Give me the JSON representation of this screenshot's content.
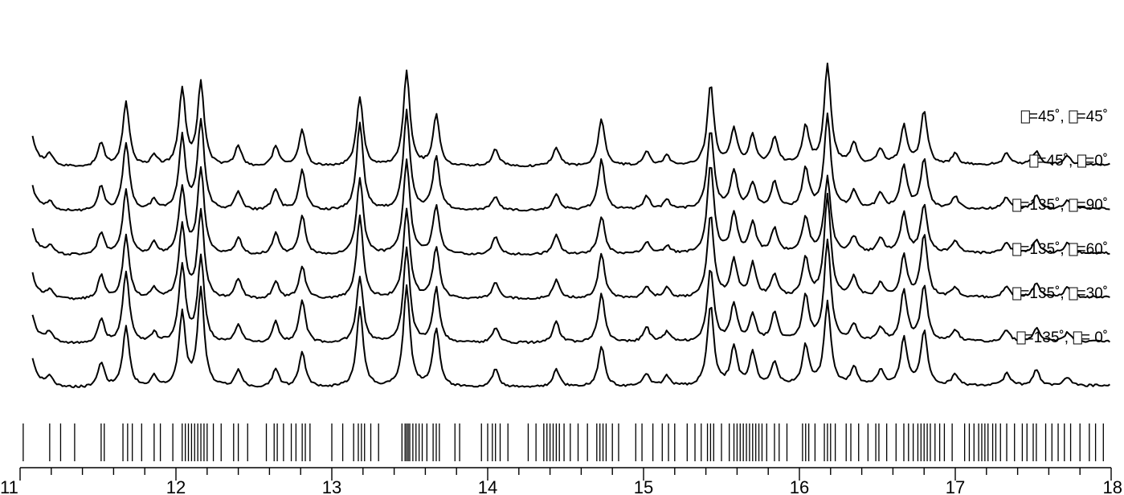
{
  "chart_data": {
    "type": "line",
    "title": "",
    "xlabel": "",
    "ylabel": "",
    "xlim": [
      11,
      18
    ],
    "x_ticks": [
      11,
      12,
      13,
      14,
      15,
      16,
      17,
      18
    ],
    "grid": false,
    "legend": "inline-right",
    "peaks": [
      {
        "x": 11.02,
        "h": 1.0
      },
      {
        "x": 11.19,
        "h": 0.05
      },
      {
        "x": 11.52,
        "h": 0.14
      },
      {
        "x": 11.68,
        "h": 0.38
      },
      {
        "x": 11.86,
        "h": 0.06
      },
      {
        "x": 12.04,
        "h": 0.38
      },
      {
        "x": 12.16,
        "h": 0.5
      },
      {
        "x": 12.4,
        "h": 0.1
      },
      {
        "x": 12.64,
        "h": 0.11
      },
      {
        "x": 12.81,
        "h": 0.2
      },
      {
        "x": 13.18,
        "h": 0.42
      },
      {
        "x": 13.48,
        "h": 0.5
      },
      {
        "x": 13.67,
        "h": 0.3
      },
      {
        "x": 14.05,
        "h": 0.09
      },
      {
        "x": 14.44,
        "h": 0.1
      },
      {
        "x": 14.73,
        "h": 0.24
      },
      {
        "x": 15.02,
        "h": 0.07
      },
      {
        "x": 15.15,
        "h": 0.05
      },
      {
        "x": 15.43,
        "h": 0.46
      },
      {
        "x": 15.58,
        "h": 0.2
      },
      {
        "x": 15.7,
        "h": 0.16
      },
      {
        "x": 15.84,
        "h": 0.14
      },
      {
        "x": 16.04,
        "h": 0.22
      },
      {
        "x": 16.18,
        "h": 0.48
      },
      {
        "x": 16.35,
        "h": 0.1
      },
      {
        "x": 16.52,
        "h": 0.08
      },
      {
        "x": 16.67,
        "h": 0.24
      },
      {
        "x": 16.8,
        "h": 0.3
      },
      {
        "x": 17.0,
        "h": 0.06
      },
      {
        "x": 17.33,
        "h": 0.06
      },
      {
        "x": 17.52,
        "h": 0.08
      },
      {
        "x": 17.72,
        "h": 0.05
      }
    ],
    "series": [
      {
        "name_prefix": "=45˚,",
        "name_suffix": "=45˚",
        "offset": 5,
        "label_x": 17.98
      },
      {
        "name_prefix": "=45˚,",
        "name_suffix": "=0˚",
        "offset": 4,
        "label_x": 17.98
      },
      {
        "name_prefix": "=135˚,",
        "name_suffix": "=90˚",
        "offset": 3,
        "label_x": 17.98
      },
      {
        "name_prefix": "=135˚,",
        "name_suffix": "=60˚",
        "offset": 2,
        "label_x": 17.98
      },
      {
        "name_prefix": "=135˚,",
        "name_suffix": "=30˚",
        "offset": 1,
        "label_x": 17.98
      },
      {
        "name_prefix": "=135˚,",
        "name_suffix": "= 0˚",
        "offset": 0,
        "label_x": 17.98
      }
    ],
    "reflection_positions": [
      11.02,
      11.19,
      11.26,
      11.35,
      11.52,
      11.54,
      11.66,
      11.69,
      11.72,
      11.78,
      11.86,
      11.9,
      11.98,
      12.04,
      12.06,
      12.08,
      12.1,
      12.12,
      12.14,
      12.16,
      12.18,
      12.2,
      12.24,
      12.29,
      12.37,
      12.4,
      12.46,
      12.58,
      12.63,
      12.65,
      12.69,
      12.74,
      12.77,
      12.81,
      12.83,
      12.86,
      13.0,
      13.07,
      13.14,
      13.17,
      13.19,
      13.21,
      13.25,
      13.3,
      13.45,
      13.47,
      13.48,
      13.49,
      13.5,
      13.52,
      13.54,
      13.56,
      13.58,
      13.61,
      13.65,
      13.67,
      13.69,
      13.79,
      13.82,
      13.96,
      14.0,
      14.03,
      14.05,
      14.08,
      14.13,
      14.26,
      14.31,
      14.36,
      14.38,
      14.4,
      14.42,
      14.44,
      14.46,
      14.49,
      14.53,
      14.58,
      14.64,
      14.7,
      14.72,
      14.74,
      14.76,
      14.8,
      14.84,
      14.95,
      14.99,
      15.06,
      15.12,
      15.16,
      15.2,
      15.28,
      15.33,
      15.37,
      15.41,
      15.43,
      15.45,
      15.5,
      15.55,
      15.58,
      15.6,
      15.62,
      15.64,
      15.66,
      15.68,
      15.7,
      15.72,
      15.74,
      15.76,
      15.79,
      15.84,
      15.87,
      15.92,
      16.02,
      16.04,
      16.06,
      16.1,
      16.16,
      16.18,
      16.2,
      16.23,
      16.3,
      16.33,
      16.38,
      16.44,
      16.49,
      16.51,
      16.56,
      16.62,
      16.67,
      16.7,
      16.73,
      16.76,
      16.78,
      16.8,
      16.82,
      16.84,
      16.87,
      16.9,
      16.93,
      16.98,
      17.06,
      17.09,
      17.12,
      17.15,
      17.17,
      17.19,
      17.21,
      17.24,
      17.26,
      17.29,
      17.33,
      17.38,
      17.43,
      17.46,
      17.5,
      17.52,
      17.58,
      17.62,
      17.66,
      17.7,
      17.74,
      17.8,
      17.86,
      17.9,
      17.95
    ]
  }
}
